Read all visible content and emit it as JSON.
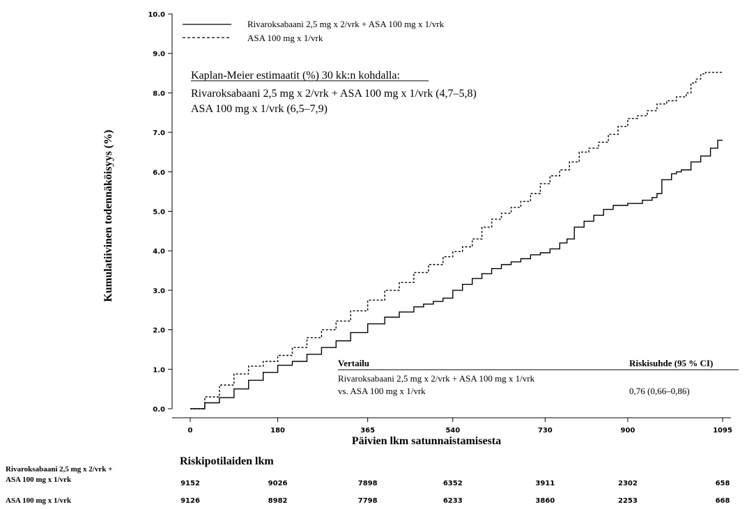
{
  "chart_data": {
    "type": "line",
    "title": "",
    "xlabel": "Päivien lkm satunnaistamisesta",
    "ylabel": "Kumulatiivinen todennäköisyys (%)",
    "xlim": [
      0,
      1095
    ],
    "ylim": [
      0,
      10
    ],
    "x_ticks": [
      "0",
      "180",
      "365",
      "540",
      "730",
      "900",
      "1095"
    ],
    "x_tick_values": [
      0,
      180,
      365,
      540,
      730,
      900,
      1095
    ],
    "y_ticks": [
      "0.0",
      "1.0",
      "2.0",
      "3.0",
      "4.0",
      "5.0",
      "6.0",
      "7.0",
      "8.0",
      "9.0",
      "10.0"
    ],
    "y_tick_values": [
      0,
      1,
      2,
      3,
      4,
      5,
      6,
      7,
      8,
      9,
      10
    ],
    "grid": false,
    "legend_position": "top-left",
    "series": [
      {
        "name": "Rivaroksabaani 2,5 mg x 2/vrk + ASA 100 mg x 1/vrk",
        "style": "solid",
        "color": "#000000",
        "x": [
          0,
          30,
          60,
          90,
          120,
          150,
          180,
          210,
          240,
          270,
          300,
          330,
          365,
          400,
          430,
          460,
          480,
          500,
          520,
          540,
          560,
          580,
          600,
          620,
          640,
          660,
          680,
          700,
          720,
          740,
          760,
          775,
          790,
          810,
          830,
          850,
          870,
          900,
          930,
          950,
          960,
          970,
          990,
          1000,
          1010,
          1030,
          1050,
          1070,
          1085,
          1095
        ],
        "y": [
          0.0,
          0.15,
          0.28,
          0.5,
          0.72,
          0.92,
          1.1,
          1.2,
          1.38,
          1.55,
          1.72,
          1.93,
          2.15,
          2.32,
          2.45,
          2.58,
          2.65,
          2.72,
          2.8,
          3.0,
          3.15,
          3.3,
          3.42,
          3.55,
          3.65,
          3.72,
          3.8,
          3.9,
          3.95,
          4.05,
          4.2,
          4.3,
          4.6,
          4.75,
          4.9,
          5.05,
          5.15,
          5.2,
          5.28,
          5.35,
          5.45,
          5.8,
          5.95,
          6.0,
          6.05,
          6.25,
          6.4,
          6.6,
          6.8,
          6.8
        ]
      },
      {
        "name": "ASA 100 mg x 1/vrk",
        "style": "dashed",
        "color": "#000000",
        "x": [
          0,
          30,
          60,
          90,
          120,
          150,
          180,
          210,
          240,
          270,
          300,
          330,
          365,
          400,
          430,
          460,
          490,
          520,
          540,
          560,
          580,
          600,
          620,
          640,
          660,
          680,
          700,
          720,
          740,
          760,
          780,
          800,
          820,
          840,
          860,
          880,
          900,
          920,
          940,
          960,
          980,
          1000,
          1020,
          1030,
          1040,
          1050,
          1060,
          1075,
          1095
        ],
        "y": [
          0.0,
          0.3,
          0.6,
          0.88,
          1.08,
          1.2,
          1.35,
          1.55,
          1.8,
          2.0,
          2.22,
          2.48,
          2.75,
          3.0,
          3.2,
          3.45,
          3.65,
          3.85,
          3.98,
          4.1,
          4.3,
          4.6,
          4.8,
          4.95,
          5.1,
          5.25,
          5.45,
          5.7,
          5.9,
          6.05,
          6.25,
          6.5,
          6.6,
          6.75,
          6.95,
          7.15,
          7.35,
          7.42,
          7.55,
          7.72,
          7.8,
          7.9,
          8.0,
          8.25,
          8.35,
          8.48,
          8.52,
          8.52,
          8.52
        ]
      }
    ],
    "legend": [
      {
        "label": "Rivaroksabaani 2,5 mg x 2/vrk + ASA 100 mg x 1/vrk",
        "style": "solid"
      },
      {
        "label": "ASA 100 mg x 1/vrk",
        "style": "dashed"
      }
    ],
    "annotations": {
      "km_title": "Kaplan-Meier estimaatit (%) 30 kk:n kohdalla:",
      "km_line1": "Rivaroksabaani 2,5 mg x 2/vrk + ASA 100 mg x 1/vrk (4,7–5,8)",
      "km_line2": "ASA 100 mg x 1/vrk (6,5–7,9)",
      "cmp_head_left": "Vertailu",
      "cmp_head_right": "Riskisuhde (95 % CI)",
      "cmp_row1": "Rivaroksabaani 2,5 mg x 2/vrk + ASA 100 mg x 1/vrk",
      "cmp_row2": "vs. ASA 100 mg x 1/vrk",
      "cmp_value": "0,76 (0,66–0,86)"
    },
    "at_risk": {
      "title": "Riskipotilaiden lkm",
      "rows": [
        {
          "label_line1": "Rivaroksabaani 2,5 mg x 2/vrk +",
          "label_line2": "ASA 100 mg x 1/vrk",
          "values": [
            "9152",
            "9026",
            "7898",
            "6352",
            "3911",
            "2302",
            "658"
          ]
        },
        {
          "label_line1": "ASA 100 mg x 1/vrk",
          "label_line2": "",
          "values": [
            "9126",
            "8982",
            "7798",
            "6233",
            "3860",
            "2253",
            "668"
          ]
        }
      ]
    }
  }
}
